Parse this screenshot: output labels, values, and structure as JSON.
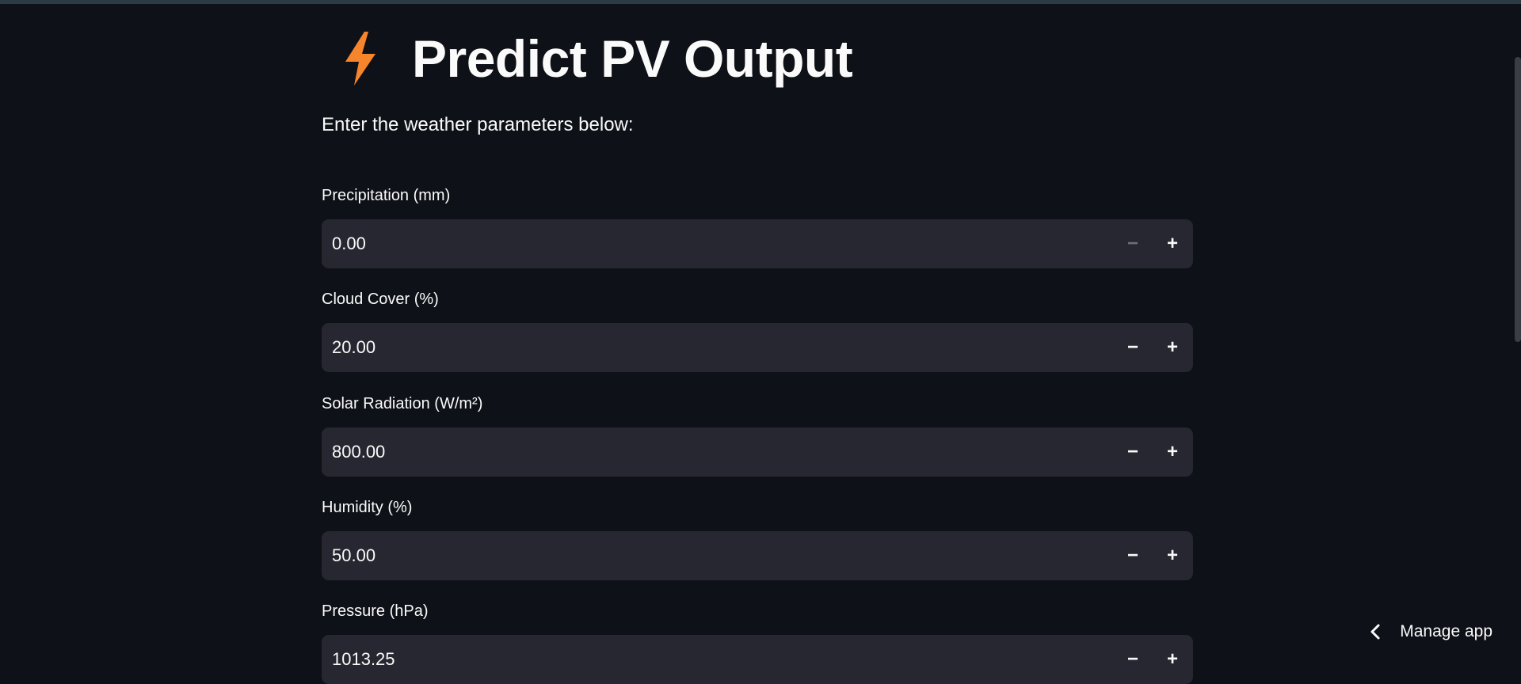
{
  "header": {
    "title": "Predict PV Output",
    "icon": "lightning-bolt-icon",
    "icon_color": "#f7852c"
  },
  "subtitle": "Enter the weather parameters below:",
  "fields": [
    {
      "label": "Precipitation (mm)",
      "value": "0.00",
      "minus": "−",
      "plus": "+"
    },
    {
      "label": "Cloud Cover (%)",
      "value": "20.00",
      "minus": "−",
      "plus": "+"
    },
    {
      "label": "Solar Radiation (W/m²)",
      "value": "800.00",
      "minus": "−",
      "plus": "+"
    },
    {
      "label": "Humidity (%)",
      "value": "50.00",
      "minus": "−",
      "plus": "+"
    },
    {
      "label": "Pressure (hPa)",
      "value": "1013.25",
      "minus": "−",
      "plus": "+"
    }
  ],
  "footer": {
    "manage_app_label": "Manage app",
    "icon": "chevron-left-icon"
  },
  "colors": {
    "background": "#0e1117",
    "input_bg": "#262730",
    "text": "#fafafa"
  }
}
